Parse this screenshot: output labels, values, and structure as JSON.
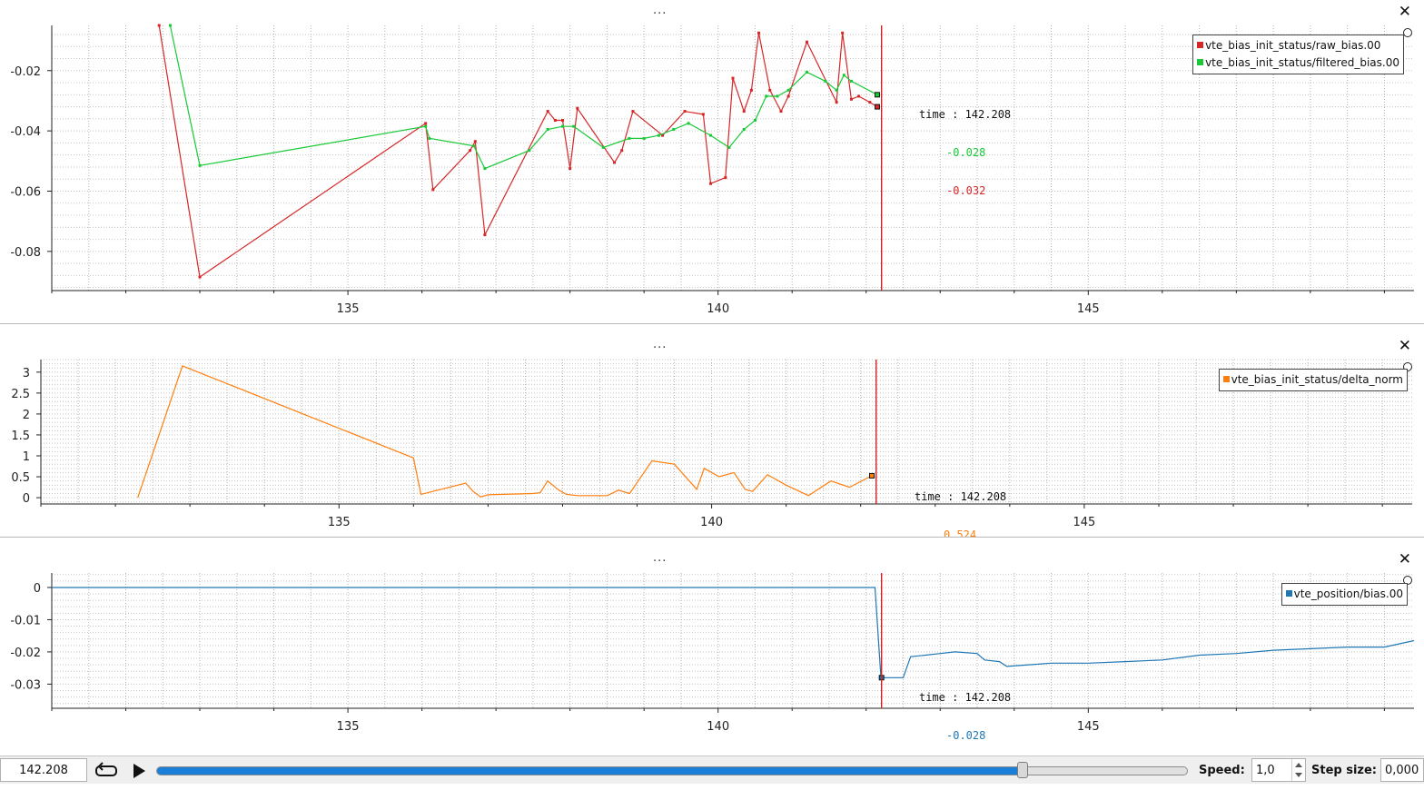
{
  "panels": [
    {
      "menu_label": "...",
      "close_label": "✕",
      "y_ticks": [
        "-0.02",
        "-0.04",
        "-0.06",
        "-0.08"
      ],
      "x_ticks": [
        "135",
        "140",
        "145"
      ],
      "legend": [
        {
          "name": "vte_bias_init_status/raw_bias.00",
          "color": "#d62728"
        },
        {
          "name": "vte_bias_init_status/filtered_bias.00",
          "color": "#1ac938"
        }
      ],
      "tracker": {
        "time_label": "time : 142.208",
        "values": [
          "-0.028",
          "-0.032"
        ],
        "colors": [
          "#1ac938",
          "#d62728"
        ]
      }
    },
    {
      "menu_label": "...",
      "close_label": "✕",
      "y_ticks": [
        "3",
        "2.5",
        "2",
        "1.5",
        "1",
        "0.5",
        "0"
      ],
      "x_ticks": [
        "135",
        "140",
        "145"
      ],
      "legend": [
        {
          "name": "vte_bias_init_status/delta_norm",
          "color": "#ff7f0e"
        }
      ],
      "tracker": {
        "time_label": "time : 142.208",
        "values": [
          "0.524"
        ],
        "colors": [
          "#ff7f0e"
        ]
      }
    },
    {
      "menu_label": "...",
      "close_label": "✕",
      "y_ticks": [
        "0",
        "-0.01",
        "-0.02",
        "-0.03"
      ],
      "x_ticks": [
        "135",
        "140",
        "145"
      ],
      "legend": [
        {
          "name": "vte_position/bias.00",
          "color": "#1f77b4"
        }
      ],
      "tracker": {
        "time_label": "time : 142.208",
        "values": [
          "-0.028"
        ],
        "colors": [
          "#1f77b4"
        ]
      }
    }
  ],
  "chart_data": [
    {
      "type": "line",
      "series": [
        {
          "name": "vte_bias_init_status/raw_bias.00",
          "x": [
            132.45,
            133.0,
            136.05,
            136.15,
            136.65,
            136.72,
            136.85,
            137.7,
            137.8,
            137.9,
            138.0,
            138.1,
            138.6,
            138.7,
            138.85,
            139.25,
            139.55,
            139.8,
            139.9,
            140.1,
            140.2,
            140.35,
            140.45,
            140.55,
            140.7,
            140.85,
            140.95,
            141.2,
            141.6,
            141.68,
            141.8,
            141.9,
            142.05,
            142.15
          ],
          "y": [
            -0.005,
            -0.0885,
            -0.0375,
            -0.0595,
            -0.0465,
            -0.0435,
            -0.0745,
            -0.0335,
            -0.0365,
            -0.0365,
            -0.0525,
            -0.0325,
            -0.0505,
            -0.0465,
            -0.0335,
            -0.0415,
            -0.0335,
            -0.0345,
            -0.0575,
            -0.0555,
            -0.0225,
            -0.0335,
            -0.0265,
            -0.0075,
            -0.0265,
            -0.0335,
            -0.0285,
            -0.0105,
            -0.0305,
            -0.0075,
            -0.0295,
            -0.0285,
            -0.0305,
            -0.032
          ]
        },
        {
          "name": "vte_bias_init_status/filtered_bias.00",
          "x": [
            132.6,
            133.0,
            136.05,
            136.1,
            136.7,
            136.85,
            137.45,
            137.7,
            137.9,
            138.05,
            138.45,
            138.8,
            139.0,
            139.2,
            139.4,
            139.6,
            139.9,
            140.15,
            140.35,
            140.5,
            140.65,
            140.8,
            140.95,
            141.2,
            141.45,
            141.6,
            141.7,
            141.8,
            142.15
          ],
          "y": [
            -0.005,
            -0.0515,
            -0.0385,
            -0.0425,
            -0.045,
            -0.0525,
            -0.0465,
            -0.0395,
            -0.0385,
            -0.0385,
            -0.0455,
            -0.0425,
            -0.0425,
            -0.0415,
            -0.0395,
            -0.0375,
            -0.0415,
            -0.0455,
            -0.0395,
            -0.0365,
            -0.0285,
            -0.0285,
            -0.0265,
            -0.0205,
            -0.0235,
            -0.0265,
            -0.0215,
            -0.0235,
            -0.028
          ]
        }
      ],
      "xlim": [
        131.0,
        149.4
      ],
      "ylim": [
        -0.093,
        -0.005
      ],
      "grid": true,
      "legend": "top-right",
      "cursor_x": 142.208
    },
    {
      "type": "line",
      "series": [
        {
          "name": "vte_bias_init_status/delta_norm",
          "x": [
            132.3,
            132.9,
            136.0,
            136.1,
            136.7,
            136.8,
            136.9,
            137.0,
            137.6,
            137.7,
            137.8,
            137.95,
            138.05,
            138.2,
            138.6,
            138.75,
            138.9,
            139.2,
            139.5,
            139.8,
            139.9,
            140.1,
            140.3,
            140.45,
            140.55,
            140.75,
            141.0,
            141.3,
            141.6,
            141.85,
            142.15
          ],
          "y": [
            0.0,
            3.15,
            0.95,
            0.08,
            0.35,
            0.15,
            0.02,
            0.07,
            0.1,
            0.12,
            0.4,
            0.18,
            0.08,
            0.05,
            0.05,
            0.18,
            0.1,
            0.88,
            0.8,
            0.2,
            0.7,
            0.5,
            0.6,
            0.2,
            0.15,
            0.55,
            0.3,
            0.05,
            0.4,
            0.25,
            0.524
          ]
        }
      ],
      "xlim": [
        131.0,
        149.4
      ],
      "ylim": [
        -0.15,
        3.3
      ],
      "grid": true,
      "legend": "top-right",
      "cursor_x": 142.208
    },
    {
      "type": "line",
      "series": [
        {
          "name": "vte_position/bias.00",
          "x": [
            131.0,
            142.12,
            142.2,
            142.3,
            142.5,
            142.6,
            142.8,
            143.0,
            143.2,
            143.5,
            143.6,
            143.8,
            143.9,
            144.2,
            144.5,
            145.0,
            145.5,
            146.0,
            146.5,
            147.0,
            147.5,
            148.0,
            148.5,
            149.0,
            149.4
          ],
          "y": [
            0.0,
            0.0,
            -0.028,
            -0.028,
            -0.028,
            -0.0215,
            -0.021,
            -0.0205,
            -0.02,
            -0.0205,
            -0.0225,
            -0.023,
            -0.0245,
            -0.024,
            -0.0235,
            -0.0235,
            -0.023,
            -0.0225,
            -0.021,
            -0.0205,
            -0.0195,
            -0.019,
            -0.0185,
            -0.0185,
            -0.0165
          ]
        }
      ],
      "xlim": [
        131.0,
        149.4
      ],
      "ylim": [
        -0.0375,
        0.0045
      ],
      "grid": true,
      "legend": "top-right",
      "cursor_x": 142.208
    }
  ],
  "toolbar": {
    "current_time": "142.208",
    "loop_icon": "loop-icon",
    "play_icon": "play-icon",
    "progress": 0.84,
    "speed_label": "Speed:",
    "speed_value": "1,0",
    "step_label": "Step size:",
    "step_value": "0,000"
  }
}
